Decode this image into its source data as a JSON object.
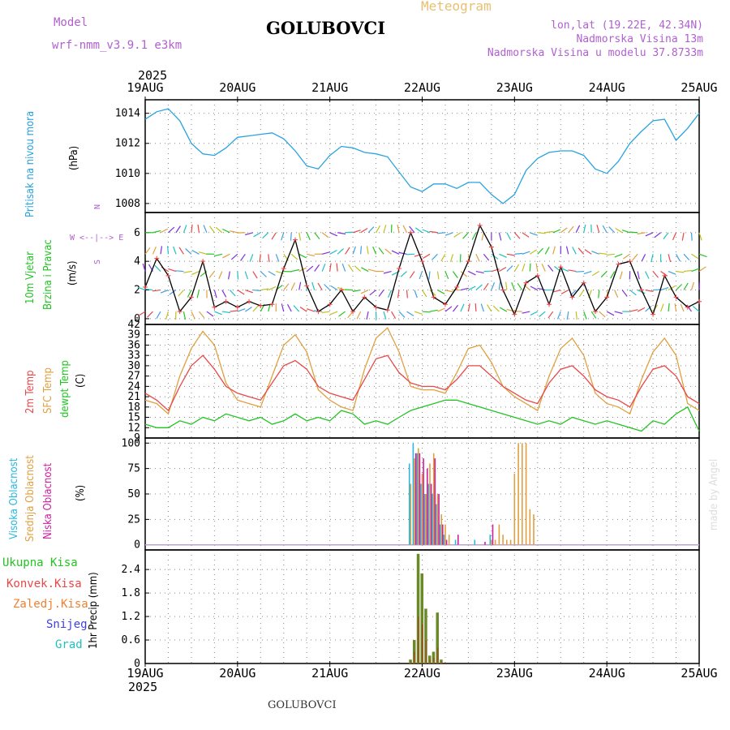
{
  "header": {
    "model_label": "Model",
    "model_name": "wrf-nmm_v3.9.1 e3km",
    "station": "GOLUBOVCI",
    "product": "Meteogram",
    "lonlat": "lon,lat (19.22E, 42.34N)",
    "elevation": "Nadmorska Visina 13m",
    "model_elevation": "Nadmorska Visina u modelu 37.8733m",
    "year": "2025",
    "footer_station": "GOLUBOVCI",
    "credit": "made by Angel"
  },
  "colors": {
    "pressure": "#29a3e0",
    "temp2m": "#e84848",
    "sfc": "#e0a040",
    "dew": "#22c422",
    "high_cloud": "#29b8e0",
    "mid_cloud": "#e0a040",
    "low_cloud": "#d020a0",
    "wind_speed": "#000000",
    "wind_marker": "#f04040",
    "model_text": "#b060d0",
    "title_meteo": "#e8c070",
    "rain_total": "#22c422",
    "rain_conv": "#e84848",
    "rain_frozen": "#f08030",
    "snow": "#4040e0",
    "hail": "#20c0c0",
    "credit": "#dddddd"
  },
  "panel_labels": {
    "pressure": {
      "title": "Pritisak na nivou mora",
      "unit": "(hPa)"
    },
    "wind": {
      "title1": "10m Vjetar",
      "title2": "Brzina i Pravac",
      "unit": "(m/s)",
      "compass_ns": "N",
      "compass_we": "W <--|--> E",
      "compass_s": "S"
    },
    "temp": {
      "t1": "2m Temp",
      "t2": "SFC Temp",
      "t3": "dewpt Temp",
      "unit": "(C)"
    },
    "cloud": {
      "c1": "Visoka Oblacnost",
      "c2": "Srednja Oblacnost",
      "c3": "Niska Oblacnost",
      "unit": "(%)"
    },
    "precip": {
      "legend": [
        "Ukupna Kisa",
        "Konvek.Kisa",
        "Zaledj.Kisa",
        "Snijeg",
        "Grad"
      ],
      "unit": "1hr Precip (mm)"
    }
  },
  "chart_data": [
    {
      "type": "line",
      "name": "Pritisak na nivou mora",
      "ylabel": "(hPa)",
      "ylim": [
        1007.4,
        1014.9
      ],
      "yticks": [
        1008,
        1010,
        1012,
        1014
      ],
      "x_unit": "hours since 19AUG 00UTC",
      "x_ticks": [
        0,
        24,
        48,
        72,
        96,
        120,
        144
      ],
      "x_tick_labels": [
        "19AUG",
        "20AUG",
        "21AUG",
        "22AUG",
        "23AUG",
        "24AUG",
        "25AUG"
      ],
      "grid": true,
      "series": [
        {
          "name": "pressure",
          "x": [
            0,
            3,
            6,
            9,
            12,
            15,
            18,
            21,
            24,
            27,
            30,
            33,
            36,
            39,
            42,
            45,
            48,
            51,
            54,
            57,
            60,
            63,
            66,
            69,
            72,
            75,
            78,
            81,
            84,
            87,
            90,
            93,
            96,
            99,
            102,
            105,
            108,
            111,
            114,
            117,
            120,
            123,
            126,
            129,
            132,
            135,
            138,
            141,
            144
          ],
          "y": [
            1013.6,
            1014.1,
            1014.3,
            1013.5,
            1012.0,
            1011.3,
            1011.2,
            1011.7,
            1012.4,
            1012.5,
            1012.6,
            1012.7,
            1012.3,
            1011.5,
            1010.5,
            1010.3,
            1011.2,
            1011.8,
            1011.7,
            1011.4,
            1011.3,
            1011.1,
            1010.1,
            1009.1,
            1008.8,
            1009.3,
            1009.3,
            1009.0,
            1009.4,
            1009.4,
            1008.6,
            1008.0,
            1008.6,
            1010.2,
            1011.0,
            1011.4,
            1011.5,
            1011.5,
            1011.2,
            1010.3,
            1010.0,
            1010.8,
            1012.0,
            1012.8,
            1013.5,
            1013.6,
            1012.2,
            1013.0,
            1014.0
          ]
        }
      ]
    },
    {
      "type": "line",
      "name": "10m Vjetar Brzina i Pravac",
      "ylabel": "(m/s)",
      "ylim": [
        -0.4,
        7.4
      ],
      "yticks": [
        0,
        2,
        4,
        6
      ],
      "grid": true,
      "series": [
        {
          "name": "wind_speed",
          "x": [
            0,
            3,
            6,
            9,
            12,
            15,
            18,
            21,
            24,
            27,
            30,
            33,
            36,
            39,
            42,
            45,
            48,
            51,
            54,
            57,
            60,
            63,
            66,
            69,
            72,
            75,
            78,
            81,
            84,
            87,
            90,
            93,
            96,
            99,
            102,
            105,
            108,
            111,
            114,
            117,
            120,
            123,
            126,
            129,
            132,
            135,
            138,
            141,
            144
          ],
          "y": [
            2.2,
            4.2,
            3.0,
            0.5,
            1.5,
            4.0,
            0.8,
            1.2,
            0.8,
            1.2,
            0.9,
            1.0,
            3.5,
            5.5,
            2.3,
            0.5,
            1.0,
            2.0,
            0.5,
            1.5,
            0.8,
            0.6,
            3.5,
            6.0,
            4.0,
            1.5,
            1.0,
            2.2,
            4.0,
            6.5,
            5.0,
            2.0,
            0.3,
            2.5,
            3.0,
            1.0,
            3.6,
            1.5,
            2.5,
            0.5,
            1.5,
            3.8,
            4.0,
            2.0,
            0.3,
            3.0,
            1.5,
            0.8,
            1.2
          ]
        }
      ],
      "direction_levels_ms": [
        6,
        4.5,
        3.3,
        2,
        0.5
      ]
    },
    {
      "type": "line",
      "name": "Temperature",
      "ylabel": "(C)",
      "ylim": [
        9,
        42
      ],
      "yticks": [
        9,
        12,
        15,
        18,
        21,
        24,
        27,
        30,
        33,
        36,
        39,
        42
      ],
      "grid": true,
      "series": [
        {
          "name": "2m Temp",
          "x": [
            0,
            3,
            6,
            9,
            12,
            15,
            18,
            21,
            24,
            27,
            30,
            33,
            36,
            39,
            42,
            45,
            48,
            51,
            54,
            57,
            60,
            63,
            66,
            69,
            72,
            75,
            78,
            81,
            84,
            87,
            90,
            93,
            96,
            99,
            102,
            105,
            108,
            111,
            114,
            117,
            120,
            123,
            126,
            129,
            132,
            135,
            138,
            141,
            144
          ],
          "y": [
            22,
            20,
            17,
            24,
            30,
            33,
            29,
            24,
            22,
            21,
            20,
            25,
            30,
            31.5,
            29,
            24,
            22,
            21,
            20,
            26,
            32,
            33,
            28,
            25,
            24,
            24,
            23,
            26,
            30,
            30,
            27,
            24,
            22,
            20,
            19,
            25,
            29,
            30,
            27,
            23,
            21,
            20,
            18,
            24,
            29,
            30,
            27,
            21,
            19
          ]
        },
        {
          "name": "SFC Temp",
          "x": [
            0,
            3,
            6,
            9,
            12,
            15,
            18,
            21,
            24,
            27,
            30,
            33,
            36,
            39,
            42,
            45,
            48,
            51,
            54,
            57,
            60,
            63,
            66,
            69,
            72,
            75,
            78,
            81,
            84,
            87,
            90,
            93,
            96,
            99,
            102,
            105,
            108,
            111,
            114,
            117,
            120,
            123,
            126,
            129,
            132,
            135,
            138,
            141,
            144
          ],
          "y": [
            20,
            19,
            16,
            27,
            35,
            40,
            36,
            25,
            20,
            19,
            18,
            27,
            36,
            39,
            34,
            23,
            20,
            18,
            17,
            29,
            38,
            41,
            34,
            24,
            23,
            23,
            22,
            28,
            35,
            36,
            31,
            24,
            21,
            19,
            17,
            27,
            35,
            38,
            33,
            22,
            19,
            18,
            16,
            26,
            34,
            38,
            33,
            19,
            17
          ]
        },
        {
          "name": "dewpt Temp",
          "x": [
            0,
            3,
            6,
            9,
            12,
            15,
            18,
            21,
            24,
            27,
            30,
            33,
            36,
            39,
            42,
            45,
            48,
            51,
            54,
            57,
            60,
            63,
            66,
            69,
            72,
            75,
            78,
            81,
            84,
            87,
            90,
            93,
            96,
            99,
            102,
            105,
            108,
            111,
            114,
            117,
            120,
            123,
            126,
            129,
            132,
            135,
            138,
            141,
            144
          ],
          "y": [
            13,
            12,
            12,
            14,
            13,
            15,
            14,
            16,
            15,
            14,
            15,
            13,
            14,
            16,
            14,
            15,
            14,
            17,
            16,
            13,
            14,
            13,
            15,
            17,
            18,
            19,
            20,
            20,
            19,
            18,
            17,
            16,
            15,
            14,
            13,
            14,
            13,
            15,
            14,
            13,
            14,
            13,
            12,
            11,
            14,
            13,
            16,
            18,
            11
          ]
        }
      ]
    },
    {
      "type": "bar",
      "name": "Oblacnost",
      "ylabel": "(%)",
      "ylim": [
        -5,
        105
      ],
      "yticks": [
        0,
        25,
        50,
        75,
        100
      ],
      "grid": true,
      "series": [
        {
          "name": "Visoka Oblacnost",
          "x": [
            69,
            70,
            71,
            72,
            73,
            74,
            75,
            76,
            77,
            78,
            81,
            86,
            90
          ],
          "values": [
            80,
            100,
            90,
            60,
            50,
            60,
            50,
            40,
            20,
            10,
            5,
            5,
            10
          ]
        },
        {
          "name": "Srednja Oblacnost",
          "x": [
            69,
            70,
            71,
            72,
            73,
            74,
            75,
            76,
            77,
            78,
            79,
            90,
            91,
            92,
            93,
            94,
            95,
            96,
            97,
            98,
            99,
            100,
            101
          ],
          "values": [
            60,
            85,
            95,
            70,
            50,
            80,
            90,
            50,
            30,
            20,
            10,
            5,
            5,
            20,
            10,
            5,
            5,
            70,
            100,
            100,
            100,
            35,
            30
          ]
        },
        {
          "name": "Niska Oblacnost",
          "x": [
            70,
            71,
            72,
            73,
            74,
            75,
            76,
            77,
            78,
            81,
            88,
            90
          ],
          "values": [
            90,
            90,
            85,
            75,
            60,
            85,
            50,
            20,
            5,
            10,
            3,
            20
          ]
        }
      ]
    },
    {
      "type": "bar",
      "name": "1hr Precip",
      "ylabel": "1hr Precip (mm)",
      "ylim": [
        0,
        2.9
      ],
      "yticks": [
        0,
        0.6,
        1.2,
        1.8,
        2.4
      ],
      "grid": true,
      "series": [
        {
          "name": "Ukupna Kisa",
          "x": [
            69,
            70,
            71,
            72,
            73,
            74,
            75,
            76,
            77
          ],
          "values": [
            0.1,
            0.6,
            2.8,
            2.3,
            1.4,
            0.2,
            0.3,
            1.3,
            0.1
          ]
        },
        {
          "name": "Konvek.Kisa",
          "x": [
            69,
            70,
            71,
            72,
            73,
            74,
            75,
            76,
            77
          ],
          "values": [
            0.05,
            0.3,
            1.2,
            1.0,
            0.6,
            0.1,
            0.15,
            0.4,
            0.05
          ]
        }
      ]
    }
  ]
}
